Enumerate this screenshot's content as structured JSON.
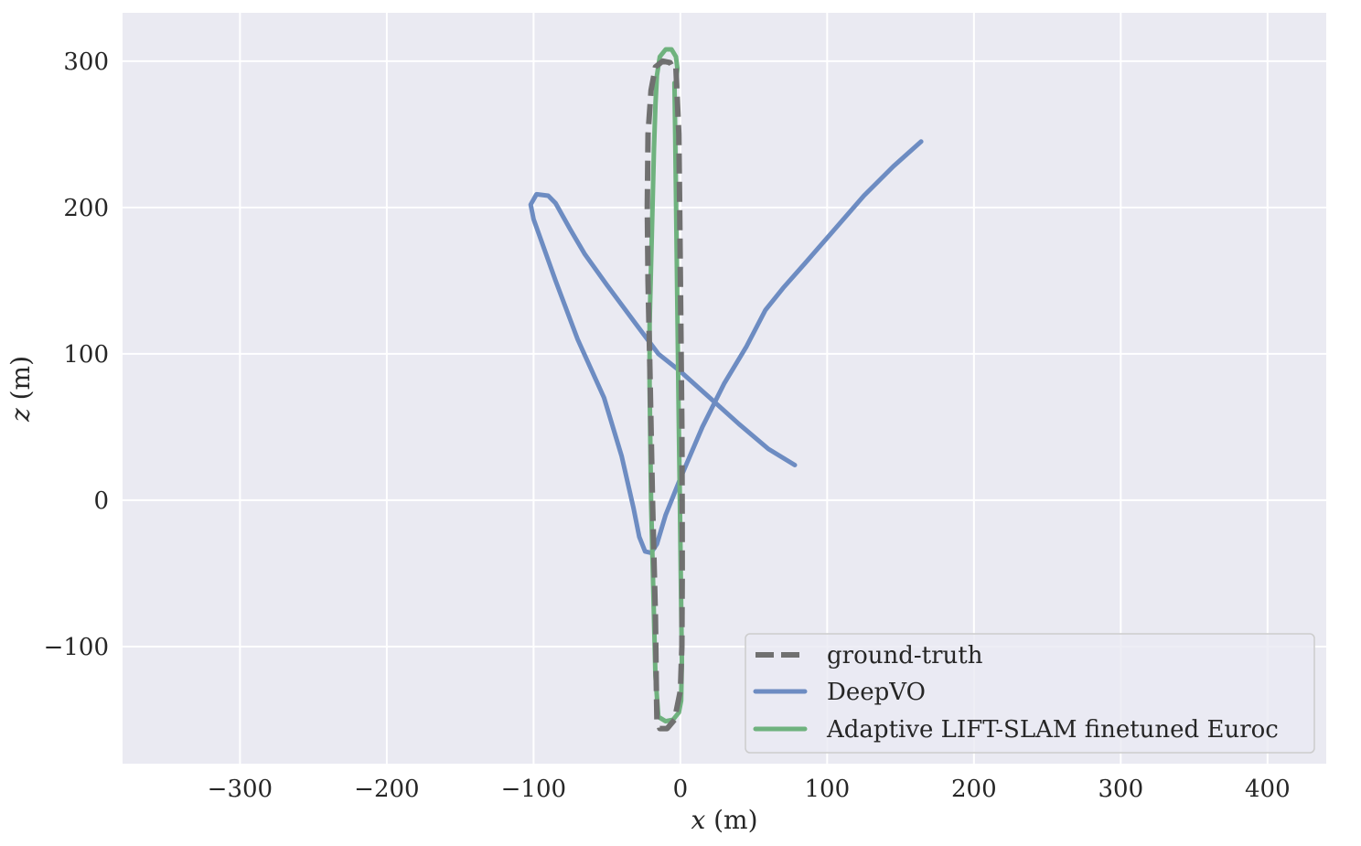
{
  "chart_data": {
    "type": "line",
    "xlabel_var": "x",
    "xlabel_unit": " (m)",
    "ylabel_var": "z",
    "ylabel_unit": " (m)",
    "xlim": [
      -380,
      440
    ],
    "ylim": [
      -180,
      333
    ],
    "xticks": [
      -300,
      -200,
      -100,
      0,
      100,
      200,
      300,
      400
    ],
    "yticks": [
      -100,
      0,
      100,
      200,
      300
    ],
    "xtick_labels": [
      "−300",
      "−200",
      "−100",
      "0",
      "100",
      "200",
      "300",
      "400"
    ],
    "ytick_labels": [
      "−100",
      "0",
      "100",
      "200",
      "300"
    ],
    "grid": true,
    "background": "#EAEAF2",
    "legend_position": "bottom-right",
    "series": [
      {
        "name": "ground-truth",
        "color": "#707070",
        "dashed": true,
        "x": [
          -3,
          -1,
          -0.5,
          0,
          0.5,
          1,
          1.2,
          1.3,
          1.0,
          0,
          -4,
          -9,
          -14,
          -16,
          -16.5,
          -17,
          -18,
          -19,
          -20,
          -21,
          -22,
          -22.5,
          -22,
          -20,
          -17,
          -12,
          -7,
          -4
        ],
        "y": [
          295,
          250,
          200,
          150,
          100,
          50,
          0,
          -50,
          -100,
          -130,
          -150,
          -156,
          -156,
          -150,
          -120,
          -80,
          -40,
          0,
          50,
          100,
          150,
          200,
          250,
          280,
          296,
          300,
          299,
          293
        ]
      },
      {
        "name": "DeepVO",
        "color": "#6D8CC2",
        "dashed": false,
        "x": [
          164,
          145,
          125,
          105,
          85,
          70,
          58,
          45,
          30,
          15,
          0,
          -10,
          -16,
          -20,
          -24,
          -28,
          -32,
          -40,
          -52,
          -70,
          -85,
          -100,
          -102,
          -98,
          -90,
          -85,
          -75,
          -65,
          -50,
          -30,
          -15,
          0,
          20,
          40,
          60,
          78
        ],
        "y": [
          245,
          228,
          208,
          185,
          162,
          145,
          130,
          105,
          80,
          50,
          15,
          -10,
          -30,
          -36,
          -35,
          -25,
          -5,
          30,
          70,
          110,
          150,
          192,
          202,
          209,
          208,
          203,
          185,
          168,
          147,
          120,
          100,
          88,
          70,
          52,
          35,
          24
        ]
      },
      {
        "name": "Adaptive LIFT-SLAM finetuned Euroc",
        "color": "#6FB27E",
        "dashed": false,
        "x": [
          -4,
          -3.5,
          -3,
          -2.5,
          -2,
          -1.5,
          -1,
          -0.5,
          0,
          0.5,
          1,
          0.5,
          -1,
          -5,
          -10,
          -15,
          -17,
          -18,
          -19,
          -20,
          -20.5,
          -21,
          -21,
          -20,
          -19,
          -18,
          -17,
          -16,
          -14,
          -10,
          -6,
          -3,
          -2,
          -3
        ],
        "y": [
          285,
          250,
          210,
          170,
          130,
          90,
          50,
          10,
          -30,
          -70,
          -110,
          -137,
          -145,
          -150,
          -151,
          -148,
          -120,
          -80,
          -40,
          0,
          40,
          80,
          120,
          160,
          200,
          240,
          270,
          290,
          303,
          308,
          308,
          303,
          295,
          286
        ]
      }
    ]
  }
}
